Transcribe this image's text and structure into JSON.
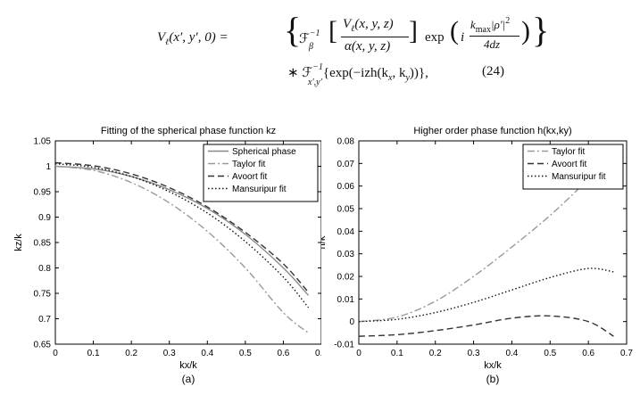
{
  "equation": {
    "lhs": "V",
    "lhs_sub": "ℓ",
    "lhs_args": "(x′, y′, 0) = ",
    "open_brace": "{",
    "close_brace": "}",
    "op1": "ℱ",
    "op1_sub": "β",
    "op1_sup": "−1",
    "open_bracket": "[",
    "close_bracket": "]",
    "frac_num": "V",
    "frac_num_sub": "ℓ",
    "frac_num_args": "(x, y, z)",
    "frac_den": "α(x, y, z)",
    "exp_word": "exp",
    "open_paren": "(",
    "close_paren": ")",
    "i_sym": "i",
    "inner_num": "k",
    "inner_num_sub": "max",
    "inner_num_rest": "|ρ′|",
    "inner_num_sup": "2",
    "inner_den": "4dz",
    "line2_star": "∗ ",
    "op2": "ℱ",
    "op2_sub": "x′,y′",
    "op2_sup": "−1",
    "line2_rest": "{exp(−izh(k",
    "kx_sub": "x",
    "mid": ", k",
    "ky_sub": "y",
    "tail": "))},",
    "number": "(24)"
  },
  "chart_data": [
    {
      "type": "line",
      "title": "Fitting of the spherical phase function kz",
      "xlabel": "kx/k",
      "ylabel": "kz/k",
      "xlim": [
        0,
        0.7
      ],
      "ylim": [
        0.65,
        1.05
      ],
      "xticks": [
        "0",
        "0.1",
        "0.2",
        "0.3",
        "0.4",
        "0.5",
        "0.6",
        "0.7"
      ],
      "yticks": [
        "0.65",
        "0.7",
        "0.75",
        "0.8",
        "0.85",
        "0.9",
        "0.95",
        "1",
        "1.05"
      ],
      "grid": false,
      "legend_position": "top-right",
      "panel_label": "(a)",
      "series": [
        {
          "name": "Spherical phase",
          "style": "solid",
          "color": "#888888",
          "x": [
            0,
            0.1,
            0.2,
            0.3,
            0.4,
            0.5,
            0.6,
            0.666
          ],
          "y": [
            1.0,
            0.995,
            0.98,
            0.954,
            0.917,
            0.866,
            0.8,
            0.746
          ]
        },
        {
          "name": "Taylor fit",
          "style": "dashdot",
          "color": "#999999",
          "x": [
            0,
            0.1,
            0.2,
            0.3,
            0.4,
            0.5,
            0.6,
            0.666
          ],
          "y": [
            1.0,
            0.992,
            0.968,
            0.928,
            0.872,
            0.8,
            0.712,
            0.672
          ]
        },
        {
          "name": "Avoort fit",
          "style": "dashed",
          "color": "#333333",
          "x": [
            0,
            0.1,
            0.2,
            0.3,
            0.4,
            0.5,
            0.6,
            0.666
          ],
          "y": [
            1.007,
            1.001,
            0.985,
            0.958,
            0.92,
            0.87,
            0.808,
            0.752
          ]
        },
        {
          "name": "Mansuripur fit",
          "style": "dotted",
          "color": "#111111",
          "x": [
            0,
            0.1,
            0.2,
            0.3,
            0.4,
            0.5,
            0.6,
            0.666
          ],
          "y": [
            1.005,
            0.998,
            0.98,
            0.95,
            0.908,
            0.852,
            0.782,
            0.722
          ]
        }
      ]
    },
    {
      "type": "line",
      "title": "Higher order phase function h(kx,ky)",
      "xlabel": "kx/k",
      "ylabel": "h/k",
      "xlim": [
        0,
        0.7
      ],
      "ylim": [
        -0.01,
        0.08
      ],
      "xticks": [
        "0",
        "0.1",
        "0.2",
        "0.3",
        "0.4",
        "0.5",
        "0.6",
        "0.7"
      ],
      "yticks": [
        "-0.01",
        "0",
        "0.01",
        "0.02",
        "0.03",
        "0.04",
        "0.05",
        "0.06",
        "0.07",
        "0.08"
      ],
      "grid": false,
      "legend_position": "top-right",
      "panel_label": "(b)",
      "series": [
        {
          "name": "Taylor fit",
          "style": "dashdot",
          "color": "#999999",
          "x": [
            0,
            0.1,
            0.2,
            0.3,
            0.4,
            0.5,
            0.6,
            0.666
          ],
          "y": [
            0,
            0.002,
            0.009,
            0.02,
            0.033,
            0.047,
            0.063,
            0.075
          ]
        },
        {
          "name": "Avoort fit",
          "style": "dashed",
          "color": "#333333",
          "x": [
            0,
            0.1,
            0.2,
            0.3,
            0.4,
            0.5,
            0.6,
            0.666
          ],
          "y": [
            -0.0065,
            -0.0058,
            -0.004,
            -0.0015,
            0.0015,
            0.0025,
            0.0,
            -0.0065
          ]
        },
        {
          "name": "Mansuripur fit",
          "style": "dotted",
          "color": "#111111",
          "x": [
            0,
            0.1,
            0.2,
            0.3,
            0.4,
            0.5,
            0.6,
            0.666
          ],
          "y": [
            0,
            0.001,
            0.004,
            0.0085,
            0.014,
            0.0195,
            0.0235,
            0.022
          ]
        }
      ]
    }
  ]
}
